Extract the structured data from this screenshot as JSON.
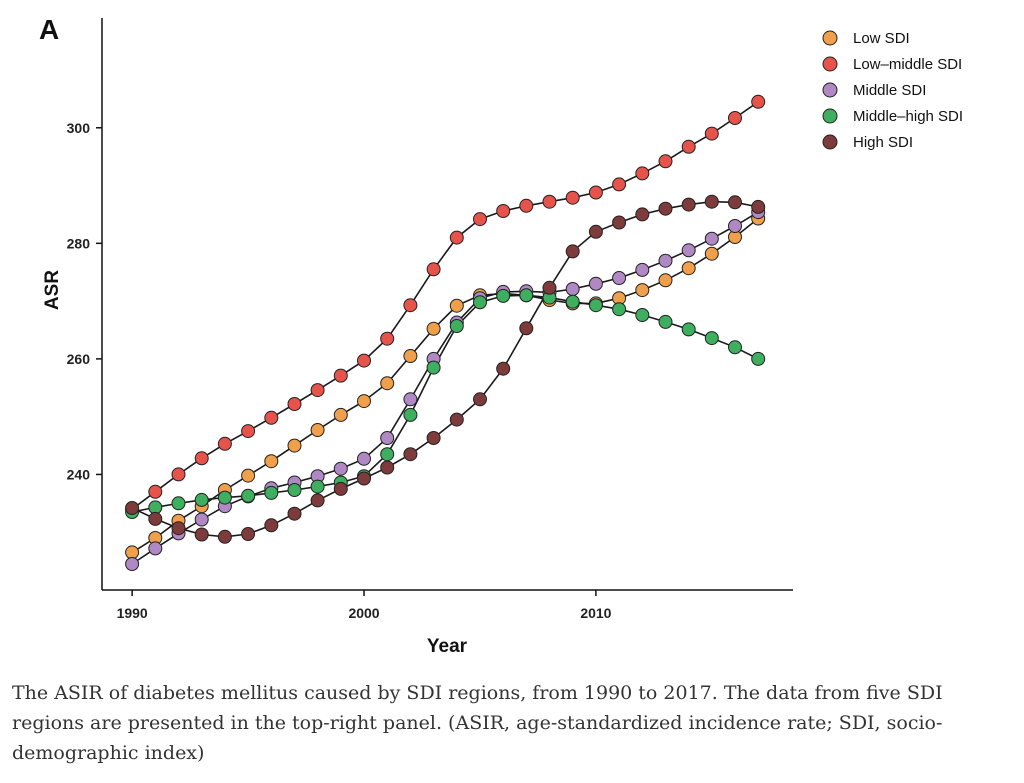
{
  "caption": "The ASIR of diabetes mellitus caused by SDI regions, from 1990 to 2017. The data from five SDI regions are presented in the top-right panel. (ASIR, age-standardized incidence rate; SDI, socio-demographic index)",
  "chart_data": {
    "type": "line",
    "panel_label": "A",
    "title": "",
    "xlabel": "Year",
    "ylabel": "ASR",
    "xlim": [
      1988.7,
      2018.5
    ],
    "ylim": [
      220,
      319
    ],
    "xticks": [
      1990,
      2000,
      2010
    ],
    "yticks": [
      240,
      260,
      280,
      300
    ],
    "grid": false,
    "legend_position": "top-right",
    "x": [
      1990,
      1991,
      1992,
      1993,
      1994,
      1995,
      1996,
      1997,
      1998,
      1999,
      2000,
      2001,
      2002,
      2003,
      2004,
      2005,
      2006,
      2007,
      2008,
      2009,
      2010,
      2011,
      2012,
      2013,
      2014,
      2015,
      2016,
      2017
    ],
    "series": [
      {
        "name": "Low SDI",
        "color": "#F0A04B",
        "values": [
          226.5,
          229.0,
          232.0,
          234.5,
          237.3,
          239.8,
          242.3,
          245.0,
          247.7,
          250.3,
          252.7,
          255.8,
          260.5,
          265.2,
          269.2,
          271.0,
          271.3,
          271.0,
          270.2,
          269.6,
          269.6,
          270.5,
          271.9,
          273.6,
          275.7,
          278.2,
          281.1,
          284.3
        ]
      },
      {
        "name": "Low–middle SDI",
        "color": "#E5534B",
        "values": [
          234.0,
          237.0,
          240.0,
          242.8,
          245.3,
          247.5,
          249.8,
          252.2,
          254.6,
          257.1,
          259.7,
          263.5,
          269.3,
          275.5,
          281.0,
          284.2,
          285.6,
          286.5,
          287.2,
          287.9,
          288.8,
          290.2,
          292.1,
          294.2,
          296.7,
          299.0,
          301.7,
          304.5
        ]
      },
      {
        "name": "Middle SDI",
        "color": "#B088C4",
        "values": [
          224.5,
          227.2,
          229.8,
          232.2,
          234.5,
          236.2,
          237.6,
          238.6,
          239.7,
          241.0,
          242.7,
          246.3,
          253.0,
          260.0,
          266.3,
          270.5,
          271.6,
          271.7,
          271.5,
          272.1,
          273.0,
          274.0,
          275.4,
          277.0,
          278.8,
          280.8,
          283.0,
          285.4
        ]
      },
      {
        "name": "Middle–high SDI",
        "color": "#3DAF5E",
        "values": [
          233.5,
          234.3,
          235.0,
          235.6,
          236.0,
          236.3,
          236.8,
          237.3,
          237.9,
          238.6,
          239.7,
          243.5,
          250.3,
          258.5,
          265.7,
          269.8,
          270.9,
          271.0,
          270.6,
          269.9,
          269.3,
          268.6,
          267.6,
          266.4,
          265.1,
          263.6,
          262.0,
          260.0
        ]
      },
      {
        "name": "High SDI",
        "color": "#7D3B3B",
        "values": [
          234.2,
          232.3,
          230.7,
          229.6,
          229.2,
          229.7,
          231.2,
          233.2,
          235.5,
          237.5,
          239.3,
          241.2,
          243.5,
          246.3,
          249.5,
          253.0,
          258.3,
          265.3,
          272.3,
          278.6,
          282.0,
          283.6,
          285.0,
          286.0,
          286.7,
          287.2,
          287.1,
          286.3
        ]
      }
    ]
  }
}
